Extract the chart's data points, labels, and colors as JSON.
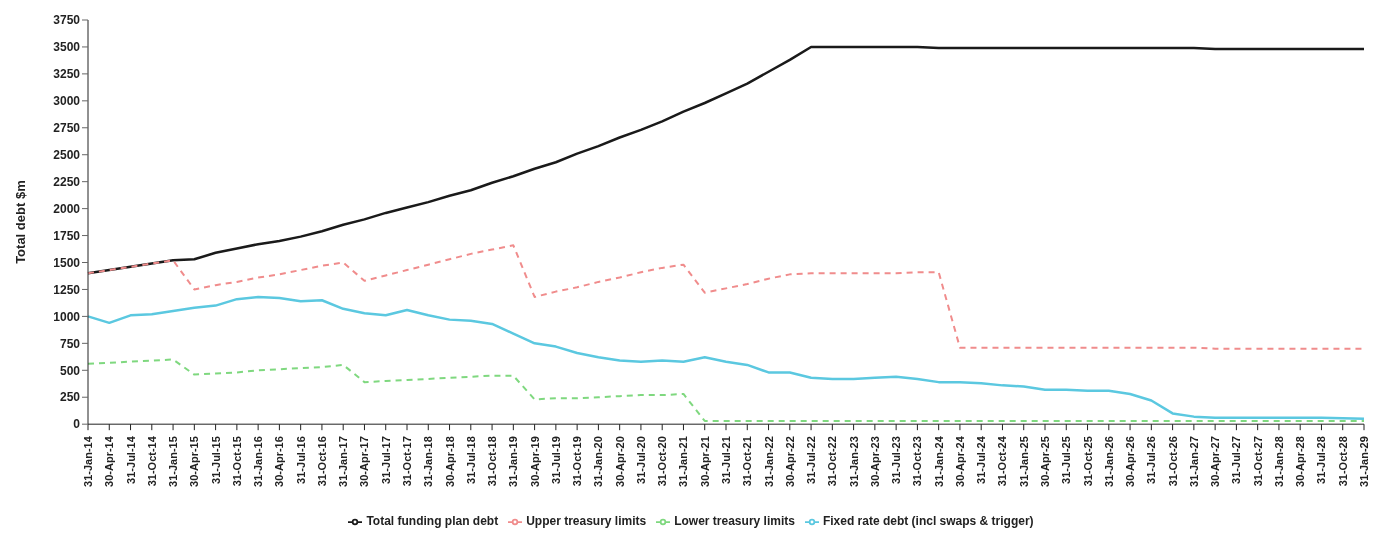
{
  "chart_data": {
    "type": "line",
    "ylabel": "Total debt $m",
    "categories": [
      "31-Jan-14",
      "30-Apr-14",
      "31-Jul-14",
      "31-Oct-14",
      "31-Jan-15",
      "30-Apr-15",
      "31-Jul-15",
      "31-Oct-15",
      "31-Jan-16",
      "30-Apr-16",
      "31-Jul-16",
      "31-Oct-16",
      "31-Jan-17",
      "30-Apr-17",
      "31-Jul-17",
      "31-Oct-17",
      "31-Jan-18",
      "30-Apr-18",
      "31-Jul-18",
      "31-Oct-18",
      "31-Jan-19",
      "30-Apr-19",
      "31-Jul-19",
      "31-Oct-19",
      "31-Jan-20",
      "30-Apr-20",
      "31-Jul-20",
      "31-Oct-20",
      "31-Jan-21",
      "30-Apr-21",
      "31-Jul-21",
      "31-Oct-21",
      "31-Jan-22",
      "30-Apr-22",
      "31-Jul-22",
      "31-Oct-22",
      "31-Jan-23",
      "30-Apr-23",
      "31-Jul-23",
      "31-Oct-23",
      "31-Jan-24",
      "30-Apr-24",
      "31-Jul-24",
      "31-Oct-24",
      "31-Jan-25",
      "30-Apr-25",
      "31-Jul-25",
      "31-Oct-25",
      "31-Jan-26",
      "30-Apr-26",
      "31-Jul-26",
      "31-Oct-26",
      "31-Jan-27",
      "30-Apr-27",
      "31-Jul-27",
      "31-Oct-27",
      "31-Jan-28",
      "30-Apr-28",
      "31-Jul-28",
      "31-Oct-28",
      "31-Jan-29"
    ],
    "series": [
      {
        "name": "Total funding plan debt",
        "color": "#1a1a1a",
        "line_style": "solid",
        "values": [
          1400,
          1430,
          1460,
          1490,
          1520,
          1530,
          1590,
          1630,
          1670,
          1700,
          1740,
          1790,
          1850,
          1900,
          1960,
          2010,
          2060,
          2120,
          2170,
          2240,
          2300,
          2370,
          2430,
          2510,
          2580,
          2660,
          2730,
          2810,
          2900,
          2980,
          3070,
          3160,
          3270,
          3380,
          3500,
          3500,
          3500,
          3500,
          3500,
          3500,
          3490,
          3490,
          3490,
          3490,
          3490,
          3490,
          3490,
          3490,
          3490,
          3490,
          3490,
          3490,
          3490,
          3480,
          3480,
          3480,
          3480,
          3480,
          3480,
          3480,
          3480
        ]
      },
      {
        "name": "Upper treasury limits",
        "color": "#f08c8c",
        "line_style": "dashed",
        "values": [
          1400,
          1430,
          1460,
          1490,
          1520,
          1250,
          1290,
          1320,
          1360,
          1390,
          1430,
          1470,
          1500,
          1330,
          1380,
          1430,
          1480,
          1530,
          1580,
          1620,
          1660,
          1180,
          1230,
          1270,
          1320,
          1360,
          1410,
          1450,
          1480,
          1220,
          1260,
          1300,
          1350,
          1390,
          1400,
          1400,
          1400,
          1400,
          1400,
          1410,
          1410,
          710,
          710,
          710,
          710,
          710,
          710,
          710,
          710,
          710,
          710,
          710,
          710,
          700,
          700,
          700,
          700,
          700,
          700,
          700,
          700
        ]
      },
      {
        "name": "Lower treasury limits",
        "color": "#7fd87f",
        "line_style": "dashed",
        "values": [
          560,
          570,
          580,
          590,
          600,
          460,
          470,
          480,
          500,
          510,
          520,
          530,
          550,
          390,
          400,
          410,
          420,
          430,
          440,
          450,
          450,
          230,
          240,
          240,
          250,
          260,
          270,
          270,
          280,
          30,
          30,
          30,
          30,
          30,
          30,
          30,
          30,
          30,
          30,
          30,
          30,
          30,
          30,
          30,
          30,
          30,
          30,
          30,
          30,
          30,
          30,
          30,
          30,
          30,
          30,
          30,
          30,
          30,
          30,
          30,
          30
        ]
      },
      {
        "name": "Fixed rate debt (incl  swaps & trigger)",
        "color": "#5bc8e0",
        "line_style": "solid",
        "values": [
          1000,
          940,
          1010,
          1020,
          1050,
          1080,
          1100,
          1160,
          1180,
          1170,
          1140,
          1150,
          1070,
          1030,
          1010,
          1060,
          1010,
          970,
          960,
          930,
          840,
          750,
          720,
          660,
          620,
          590,
          580,
          590,
          580,
          620,
          580,
          550,
          480,
          480,
          430,
          420,
          420,
          430,
          440,
          420,
          390,
          390,
          380,
          360,
          350,
          320,
          320,
          310,
          310,
          280,
          220,
          100,
          70,
          60,
          60,
          60,
          60,
          60,
          60,
          55,
          50
        ]
      }
    ],
    "ylim": [
      0,
      3750
    ],
    "yticks": [
      0,
      250,
      500,
      750,
      1000,
      1250,
      1500,
      1750,
      2000,
      2250,
      2500,
      2750,
      3000,
      3250,
      3500,
      3750
    ],
    "grid": false,
    "legend": "bottom",
    "marker": "none"
  }
}
